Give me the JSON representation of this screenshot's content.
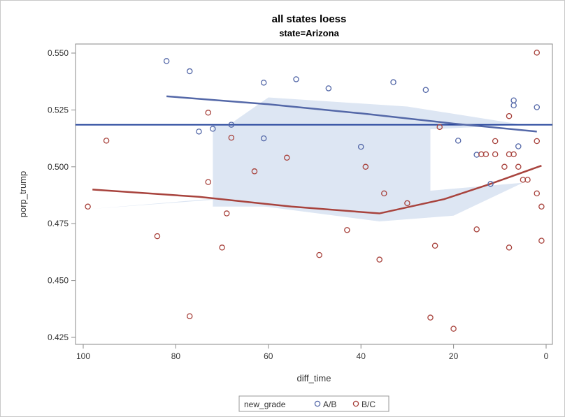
{
  "chart_data": {
    "type": "scatter",
    "title": "all states loess",
    "subtitle": "state=Arizona",
    "xlabel": "diff_time",
    "ylabel": "porp_trump",
    "xlim": [
      100,
      0
    ],
    "ylim": [
      0.425,
      0.55
    ],
    "x_ticks": [
      "100",
      "80",
      "60",
      "40",
      "20",
      "0"
    ],
    "y_ticks": [
      "0.425",
      "0.450",
      "0.475",
      "0.500",
      "0.525",
      "0.550"
    ],
    "grid": false,
    "legend": {
      "title": "new_grade",
      "placement": "bottom-center"
    },
    "reference_line": {
      "y": 0.5185,
      "color": "#1f3f99"
    },
    "series": [
      {
        "name": "A/B",
        "color": "#5468a8",
        "points": [
          [
            82,
            0.5465
          ],
          [
            77,
            0.542
          ],
          [
            75,
            0.5155
          ],
          [
            72,
            0.5167
          ],
          [
            68,
            0.5185
          ],
          [
            61,
            0.537
          ],
          [
            61,
            0.5125
          ],
          [
            54,
            0.5385
          ],
          [
            47,
            0.5345
          ],
          [
            40,
            0.5088
          ],
          [
            33,
            0.5372
          ],
          [
            26,
            0.5338
          ],
          [
            19,
            0.5115
          ],
          [
            15,
            0.5053
          ],
          [
            12,
            0.4925
          ],
          [
            7,
            0.5292
          ],
          [
            7,
            0.527
          ],
          [
            6,
            0.509
          ],
          [
            2,
            0.5262
          ]
        ],
        "loess": [
          [
            82,
            0.531
          ],
          [
            60,
            0.5275
          ],
          [
            40,
            0.5235
          ],
          [
            20,
            0.519
          ],
          [
            2,
            0.5155
          ]
        ]
      },
      {
        "name": "B/C",
        "color": "#a8433d",
        "points": [
          [
            99,
            0.4825
          ],
          [
            95,
            0.5115
          ],
          [
            84,
            0.4695
          ],
          [
            77,
            0.4343
          ],
          [
            73,
            0.5238
          ],
          [
            73,
            0.4933
          ],
          [
            70,
            0.4645
          ],
          [
            69,
            0.4795
          ],
          [
            68,
            0.5128
          ],
          [
            63,
            0.498
          ],
          [
            56,
            0.504
          ],
          [
            49,
            0.4612
          ],
          [
            43,
            0.4722
          ],
          [
            39,
            0.5
          ],
          [
            36,
            0.4592
          ],
          [
            35,
            0.4883
          ],
          [
            30,
            0.484
          ],
          [
            25,
            0.4337
          ],
          [
            24,
            0.4653
          ],
          [
            23,
            0.5175
          ],
          [
            20,
            0.4288
          ],
          [
            15,
            0.4725
          ],
          [
            14,
            0.5055
          ],
          [
            13,
            0.5055
          ],
          [
            11,
            0.5113
          ],
          [
            11,
            0.5055
          ],
          [
            9,
            0.5
          ],
          [
            8,
            0.4645
          ],
          [
            8,
            0.5223
          ],
          [
            8,
            0.5055
          ],
          [
            7,
            0.5055
          ],
          [
            6,
            0.5
          ],
          [
            5,
            0.4943
          ],
          [
            4,
            0.4943
          ],
          [
            2,
            0.5502
          ],
          [
            2,
            0.5113
          ],
          [
            2,
            0.4883
          ],
          [
            1,
            0.4825
          ],
          [
            1,
            0.4675
          ]
        ],
        "loess": [
          [
            98,
            0.49
          ],
          [
            75,
            0.4868
          ],
          [
            55,
            0.4825
          ],
          [
            36,
            0.4795
          ],
          [
            22,
            0.4858
          ],
          [
            12,
            0.4925
          ],
          [
            1,
            0.5005
          ]
        ]
      }
    ]
  }
}
